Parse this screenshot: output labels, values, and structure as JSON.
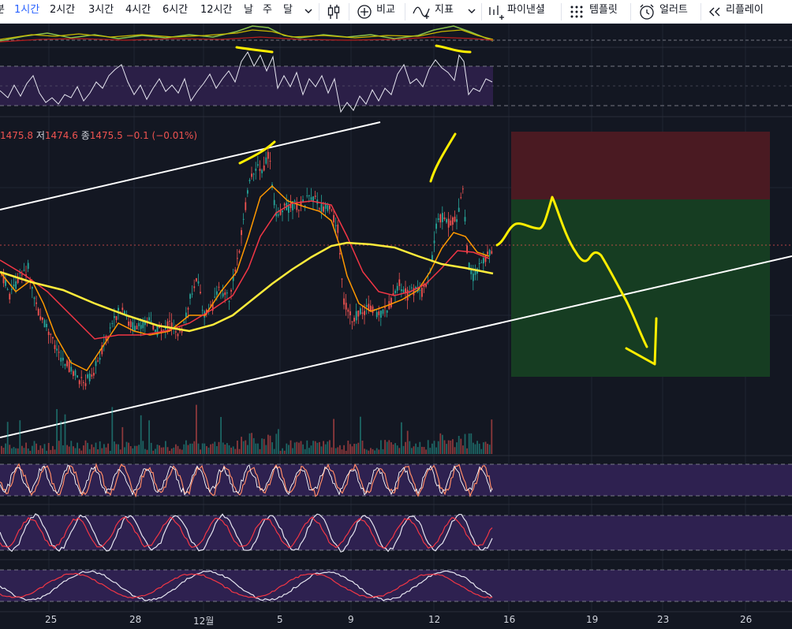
{
  "toolbar": {
    "intervals": [
      "1시간",
      "2시간",
      "3시간",
      "4시간",
      "6시간",
      "12시간",
      "날",
      "주",
      "달"
    ],
    "active_interval": "1시간",
    "leading_fragment": "분",
    "compare": "비교",
    "indicators": "지표",
    "financials": "파이낸셜",
    "templates": "템플릿",
    "alert": "얼러트",
    "replay": "리플레이"
  },
  "legend": {
    "open_value": "1475.8",
    "low_label": "저",
    "low_value": "1474.6",
    "close_label": "종",
    "close_value": "1475.5",
    "change": "−0.1 (−0.01%)"
  },
  "x_axis": {
    "labels": [
      "25",
      "28",
      "12월",
      "5",
      "9",
      "12",
      "16",
      "19",
      "23",
      "26"
    ]
  },
  "colors": {
    "background": "#131722",
    "up": "#26a69a",
    "down": "#ef5350",
    "ma_fast": "#ff9800",
    "ma_mid": "#f23645",
    "ma_slow": "#ffeb3b",
    "annotation": "#ffee00",
    "oscillator_band": "#3c2a5c",
    "stop_zone": "#4a1a22",
    "target_zone": "#163d22"
  }
}
